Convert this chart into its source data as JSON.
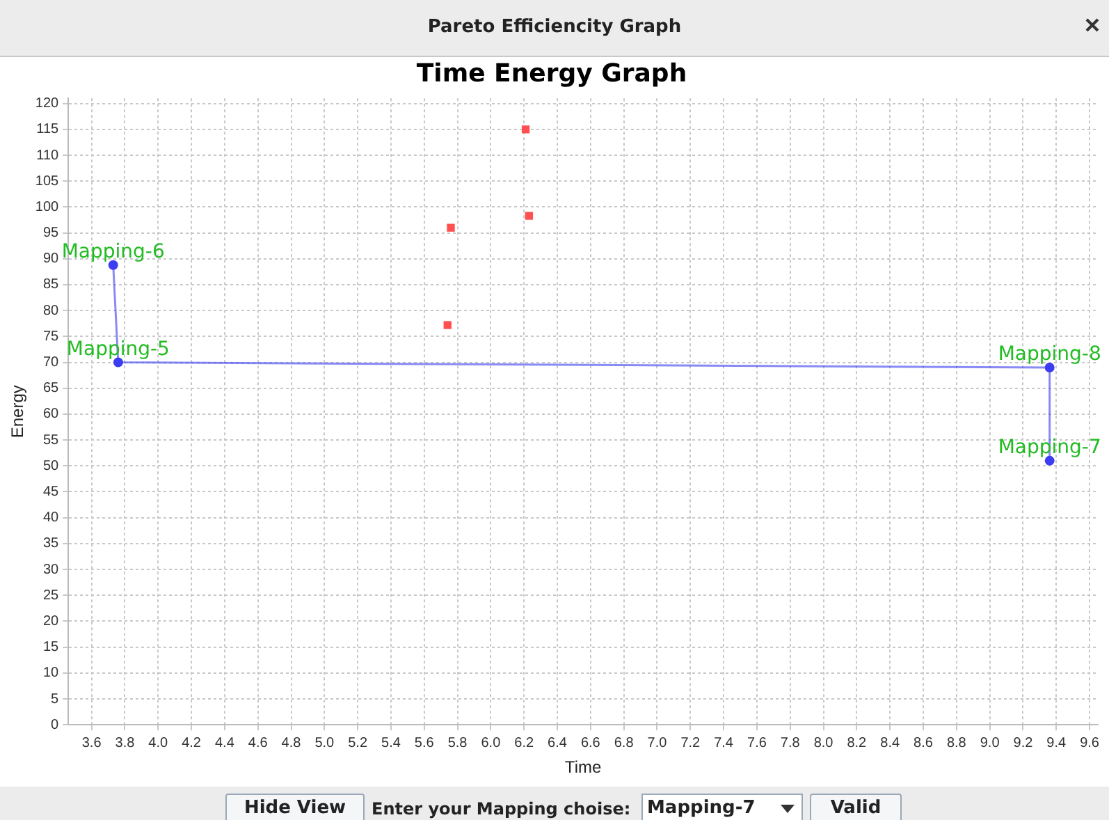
{
  "chart_data": {
    "type": "scatter",
    "title": "Time Energy Graph",
    "xlabel": "Time",
    "ylabel": "Energy",
    "xlim": [
      3.46,
      9.65
    ],
    "xticks": [
      3.6,
      3.8,
      {
        "value": 4.0,
        "label": "4.0"
      },
      4.2,
      4.4,
      4.6,
      4.8,
      {
        "value": 5.0,
        "label": "5.0"
      },
      5.2,
      5.4,
      5.6,
      5.8,
      {
        "value": 6.0,
        "label": "6.0"
      },
      6.2,
      6.4,
      6.6,
      6.8,
      {
        "value": 7.0,
        "label": "7.0"
      },
      7.2,
      7.4,
      7.6,
      7.8,
      {
        "value": 8.0,
        "label": "8.0"
      },
      8.2,
      8.4,
      8.6,
      8.8,
      {
        "value": 9.0,
        "label": "9.0"
      },
      9.2,
      9.4,
      9.6
    ],
    "ylim": [
      0,
      121
    ],
    "yticks": [
      0,
      5,
      10,
      15,
      20,
      25,
      30,
      35,
      40,
      45,
      50,
      55,
      60,
      65,
      70,
      75,
      80,
      85,
      90,
      95,
      100,
      105,
      110,
      115,
      120
    ],
    "grid": true,
    "legend": false,
    "series": [
      {
        "color": "#ff4f4f",
        "marker": "square",
        "x": [
          5.74,
          5.76,
          6.21,
          6.23
        ],
        "values": [
          77.2,
          96.0,
          115.0,
          98.3
        ]
      },
      {
        "type": "line",
        "color": "#3c3cf0",
        "marker": "circle",
        "x": [
          3.73,
          3.76,
          9.36,
          9.36
        ],
        "values": [
          88.8,
          70.0,
          69.0,
          51.0
        ]
      }
    ],
    "annotations": [
      "Pareto Efficiencity Graph",
      "Hide View",
      "Enter your Mapping choise:",
      "Mapping-7",
      "Valid",
      {
        "text": "Mapping-6",
        "x": 3.73,
        "y": 88.8
      },
      {
        "text": "Mapping-5",
        "x": 3.76,
        "y": 70.0
      },
      {
        "text": "Mapping-8",
        "x": 9.36,
        "y": 69.0
      },
      {
        "text": "Mapping-7",
        "x": 9.36,
        "y": 51.0
      }
    ]
  }
}
